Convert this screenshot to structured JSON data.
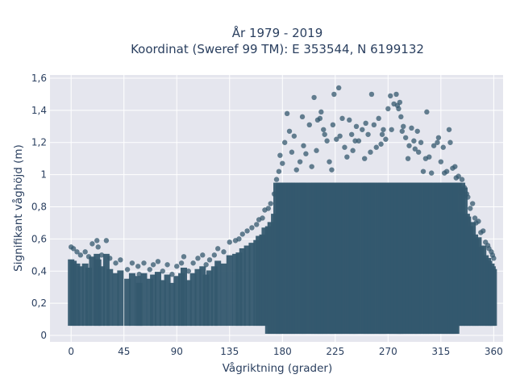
{
  "chart_data": {
    "type": "scatter",
    "title_line1": "År 1979 - 2019",
    "title_line2": "Koordinat (Sweref 99 TM): E 353544, N 6199132",
    "xlabel": "Vågriktning (grader)",
    "ylabel": "Signifikant våghöjd (m)",
    "xlim": [
      -18,
      368
    ],
    "ylim": [
      -0.04,
      1.62
    ],
    "x_ticks": [
      0,
      45,
      90,
      135,
      180,
      225,
      270,
      315,
      360
    ],
    "x_tick_labels": [
      "0",
      "45",
      "90",
      "135",
      "180",
      "225",
      "270",
      "315",
      "360"
    ],
    "y_ticks": [
      0,
      0.2,
      0.4,
      0.6,
      0.8,
      1.0,
      1.2,
      1.4,
      1.6
    ],
    "y_tick_labels": [
      "0",
      "0,2",
      "0,4",
      "0,6",
      "0,8",
      "1",
      "1,2",
      "1,4",
      "1,6"
    ],
    "grid": true,
    "marker_color": "#34586e",
    "plot_background": "#e5e6ee",
    "series": [
      {
        "values": [
          [
            0,
            0.55
          ],
          [
            2,
            0.54
          ],
          [
            5,
            0.52
          ],
          [
            8,
            0.5
          ],
          [
            12,
            0.52
          ],
          [
            15,
            0.49
          ],
          [
            18,
            0.57
          ],
          [
            22,
            0.59
          ],
          [
            23,
            0.55
          ],
          [
            26,
            0.5
          ],
          [
            30,
            0.59
          ],
          [
            33,
            0.48
          ],
          [
            38,
            0.45
          ],
          [
            42,
            0.47
          ],
          [
            48,
            0.41
          ],
          [
            52,
            0.45
          ],
          [
            57,
            0.43
          ],
          [
            58,
            0.38
          ],
          [
            62,
            0.45
          ],
          [
            67,
            0.41
          ],
          [
            70,
            0.44
          ],
          [
            74,
            0.46
          ],
          [
            78,
            0.4
          ],
          [
            82,
            0.44
          ],
          [
            86,
            0.38
          ],
          [
            90,
            0.43
          ],
          [
            94,
            0.45
          ],
          [
            96,
            0.49
          ],
          [
            100,
            0.4
          ],
          [
            104,
            0.45
          ],
          [
            108,
            0.48
          ],
          [
            112,
            0.5
          ],
          [
            115,
            0.44
          ],
          [
            118,
            0.47
          ],
          [
            122,
            0.5
          ],
          [
            125,
            0.54
          ],
          [
            130,
            0.52
          ],
          [
            135,
            0.58
          ],
          [
            140,
            0.59
          ],
          [
            143,
            0.6
          ],
          [
            146,
            0.63
          ],
          [
            150,
            0.65
          ],
          [
            154,
            0.67
          ],
          [
            158,
            0.69
          ],
          [
            160,
            0.72
          ],
          [
            163,
            0.73
          ],
          [
            165,
            0.78
          ],
          [
            168,
            0.79
          ],
          [
            170,
            0.82
          ],
          [
            173,
            0.88
          ],
          [
            175,
            0.97
          ],
          [
            177,
            1.02
          ],
          [
            178,
            1.12
          ],
          [
            180,
            1.07
          ],
          [
            182,
            1.2
          ],
          [
            184,
            1.38
          ],
          [
            186,
            1.27
          ],
          [
            188,
            1.14
          ],
          [
            190,
            1.24
          ],
          [
            192,
            1.03
          ],
          [
            195,
            1.08
          ],
          [
            197,
            1.36
          ],
          [
            198,
            1.18
          ],
          [
            200,
            1.13
          ],
          [
            203,
            1.31
          ],
          [
            205,
            1.05
          ],
          [
            207,
            1.48
          ],
          [
            209,
            1.15
          ],
          [
            210,
            1.34
          ],
          [
            212,
            1.35
          ],
          [
            213,
            1.39
          ],
          [
            215,
            1.28
          ],
          [
            216,
            1.25
          ],
          [
            218,
            1.21
          ],
          [
            220,
            1.08
          ],
          [
            222,
            1.03
          ],
          [
            223,
            1.31
          ],
          [
            224,
            1.5
          ],
          [
            226,
            1.22
          ],
          [
            228,
            1.54
          ],
          [
            229,
            1.24
          ],
          [
            231,
            1.35
          ],
          [
            233,
            1.17
          ],
          [
            235,
            1.11
          ],
          [
            237,
            1.34
          ],
          [
            239,
            1.25
          ],
          [
            240,
            1.15
          ],
          [
            242,
            1.21
          ],
          [
            243,
            1.3
          ],
          [
            245,
            1.21
          ],
          [
            248,
            1.28
          ],
          [
            250,
            1.1
          ],
          [
            251,
            1.32
          ],
          [
            253,
            1.25
          ],
          [
            255,
            1.14
          ],
          [
            256,
            1.5
          ],
          [
            258,
            1.31
          ],
          [
            260,
            1.17
          ],
          [
            262,
            1.35
          ],
          [
            264,
            1.19
          ],
          [
            265,
            1.25
          ],
          [
            266,
            1.28
          ],
          [
            268,
            1.22
          ],
          [
            270,
            1.41
          ],
          [
            272,
            1.49
          ],
          [
            273,
            1.28
          ],
          [
            275,
            1.44
          ],
          [
            277,
            1.5
          ],
          [
            278,
            1.43
          ],
          [
            279,
            1.41
          ],
          [
            280,
            1.45
          ],
          [
            281,
            1.36
          ],
          [
            282,
            1.27
          ],
          [
            283,
            1.3
          ],
          [
            285,
            1.23
          ],
          [
            287,
            1.1
          ],
          [
            288,
            1.18
          ],
          [
            290,
            1.29
          ],
          [
            292,
            1.21
          ],
          [
            293,
            1.16
          ],
          [
            295,
            1.27
          ],
          [
            296,
            1.14
          ],
          [
            298,
            1.2
          ],
          [
            300,
            1.02
          ],
          [
            302,
            1.1
          ],
          [
            303,
            1.39
          ],
          [
            305,
            1.11
          ],
          [
            307,
            1.01
          ],
          [
            309,
            1.18
          ],
          [
            312,
            1.2
          ],
          [
            313,
            1.23
          ],
          [
            315,
            1.08
          ],
          [
            317,
            1.17
          ],
          [
            318,
            1.01
          ],
          [
            320,
            1.02
          ],
          [
            322,
            1.28
          ],
          [
            323,
            1.2
          ],
          [
            325,
            1.04
          ],
          [
            327,
            1.05
          ],
          [
            328,
            0.98
          ],
          [
            330,
            0.99
          ],
          [
            332,
            0.89
          ],
          [
            333,
            0.97
          ],
          [
            335,
            0.92
          ],
          [
            337,
            0.88
          ],
          [
            338,
            0.86
          ],
          [
            340,
            0.79
          ],
          [
            342,
            0.82
          ],
          [
            344,
            0.73
          ],
          [
            345,
            0.7
          ],
          [
            347,
            0.71
          ],
          [
            349,
            0.64
          ],
          [
            351,
            0.65
          ],
          [
            353,
            0.58
          ],
          [
            355,
            0.56
          ],
          [
            356,
            0.54
          ],
          [
            358,
            0.52
          ],
          [
            359,
            0.5
          ],
          [
            360,
            0.48
          ]
        ]
      }
    ]
  }
}
